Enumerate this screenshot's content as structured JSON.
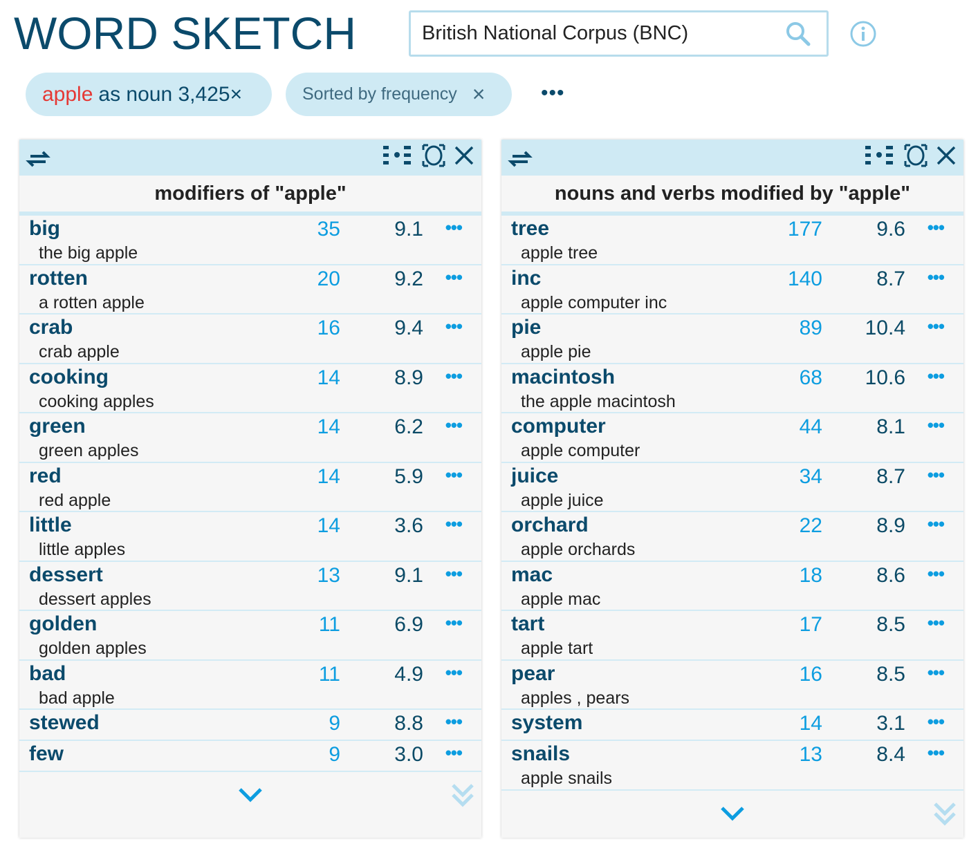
{
  "app_title": "WORD SKETCH",
  "corpus": "British National Corpus (BNC)",
  "query": {
    "word": "apple",
    "rest": "as noun 3,425×"
  },
  "sort": {
    "label": "Sorted by frequency",
    "close": "×"
  },
  "more": "•••",
  "colors": {
    "accent": "#0d9de0",
    "dark": "#0b4a6b",
    "header": "#cfeaf4",
    "highlight": "#e53935"
  },
  "panels": [
    {
      "title": "modifiers of \"apple\"",
      "rows": [
        {
          "word": "big",
          "freq": "35",
          "score": "9.1",
          "example": "the big apple"
        },
        {
          "word": "rotten",
          "freq": "20",
          "score": "9.2",
          "example": "a rotten apple"
        },
        {
          "word": "crab",
          "freq": "16",
          "score": "9.4",
          "example": "crab apple"
        },
        {
          "word": "cooking",
          "freq": "14",
          "score": "8.9",
          "example": "cooking apples"
        },
        {
          "word": "green",
          "freq": "14",
          "score": "6.2",
          "example": "green apples"
        },
        {
          "word": "red",
          "freq": "14",
          "score": "5.9",
          "example": "red apple"
        },
        {
          "word": "little",
          "freq": "14",
          "score": "3.6",
          "example": "little apples"
        },
        {
          "word": "dessert",
          "freq": "13",
          "score": "9.1",
          "example": "dessert apples"
        },
        {
          "word": "golden",
          "freq": "11",
          "score": "6.9",
          "example": "golden apples"
        },
        {
          "word": "bad",
          "freq": "11",
          "score": "4.9",
          "example": "bad apple"
        },
        {
          "word": "stewed",
          "freq": "9",
          "score": "8.8",
          "example": ""
        },
        {
          "word": "few",
          "freq": "9",
          "score": "3.0",
          "example": ""
        }
      ]
    },
    {
      "title": "nouns and verbs modified by \"apple\"",
      "rows": [
        {
          "word": "tree",
          "freq": "177",
          "score": "9.6",
          "example": "apple tree"
        },
        {
          "word": "inc",
          "freq": "140",
          "score": "8.7",
          "example": "apple computer inc"
        },
        {
          "word": "pie",
          "freq": "89",
          "score": "10.4",
          "example": "apple pie"
        },
        {
          "word": "macintosh",
          "freq": "68",
          "score": "10.6",
          "example": "the apple macintosh"
        },
        {
          "word": "computer",
          "freq": "44",
          "score": "8.1",
          "example": "apple computer"
        },
        {
          "word": "juice",
          "freq": "34",
          "score": "8.7",
          "example": "apple juice"
        },
        {
          "word": "orchard",
          "freq": "22",
          "score": "8.9",
          "example": "apple orchards"
        },
        {
          "word": "mac",
          "freq": "18",
          "score": "8.6",
          "example": "apple mac"
        },
        {
          "word": "tart",
          "freq": "17",
          "score": "8.5",
          "example": "apple tart"
        },
        {
          "word": "pear",
          "freq": "16",
          "score": "8.5",
          "example": "apples , pears"
        },
        {
          "word": "system",
          "freq": "14",
          "score": "3.1",
          "example": ""
        },
        {
          "word": "snails",
          "freq": "13",
          "score": "8.4",
          "example": "apple snails"
        }
      ]
    }
  ]
}
